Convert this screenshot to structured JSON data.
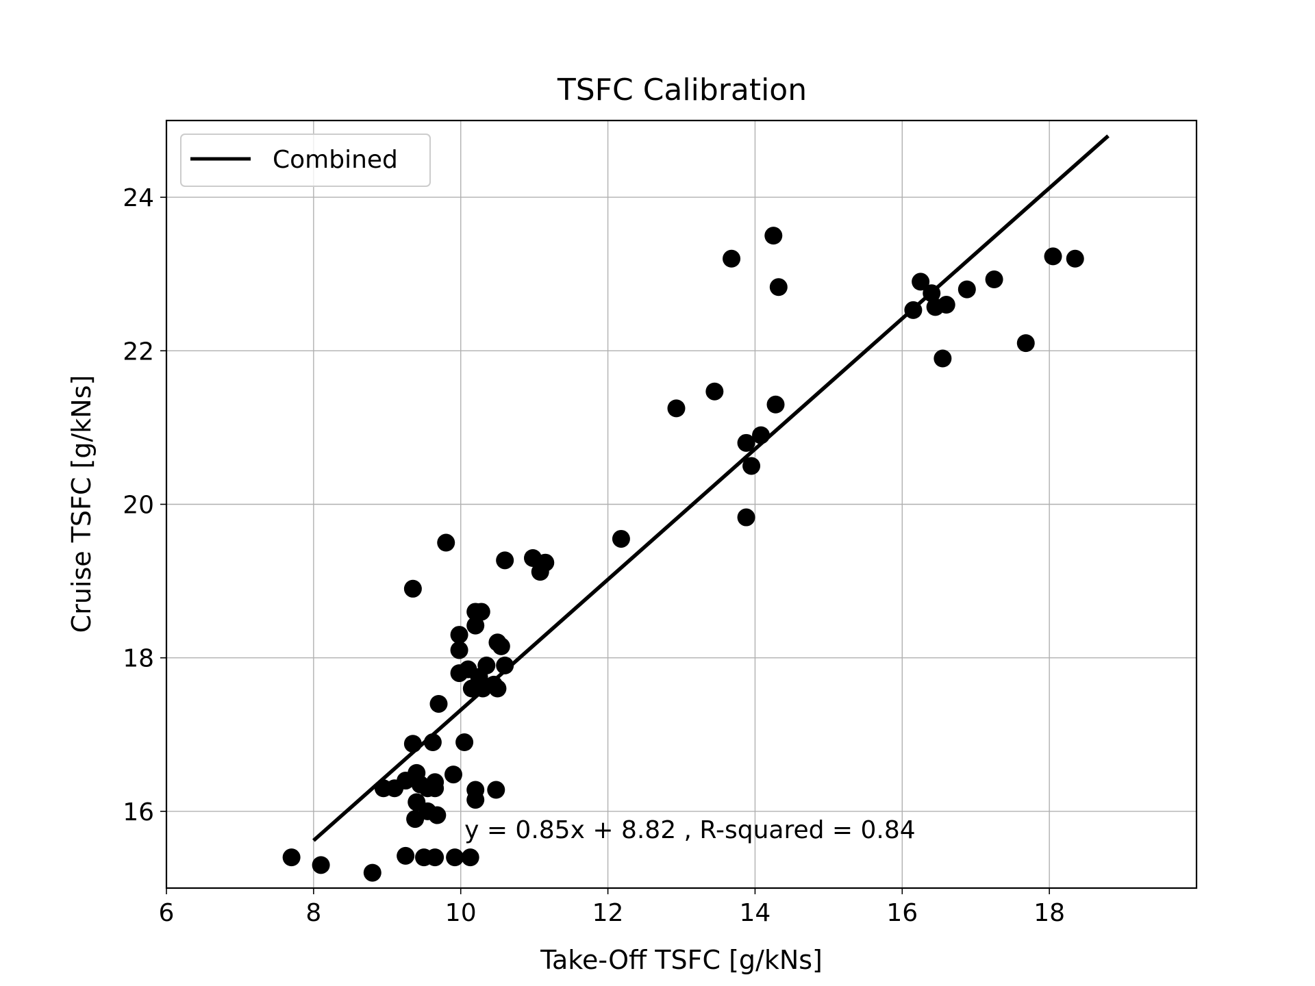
{
  "chart_data": {
    "type": "scatter",
    "title": "TSFC Calibration",
    "xlabel": "Take-Off TSFC [g/kNs]",
    "ylabel": "Cruise TSFC [g/kNs]",
    "xlim": [
      6,
      20
    ],
    "ylim": [
      15,
      25
    ],
    "xticks": [
      6,
      8,
      10,
      12,
      14,
      16,
      18
    ],
    "yticks": [
      16,
      18,
      20,
      22,
      24
    ],
    "grid": true,
    "legend_position": "upper-left",
    "legend": [
      {
        "label": "Combined",
        "type": "line",
        "color": "#000000"
      }
    ],
    "points_color": "#000000",
    "line_color": "#000000",
    "points": [
      [
        7.7,
        15.4
      ],
      [
        8.1,
        15.3
      ],
      [
        8.8,
        15.2
      ],
      [
        9.25,
        15.42
      ],
      [
        9.5,
        15.4
      ],
      [
        9.65,
        15.4
      ],
      [
        9.92,
        15.4
      ],
      [
        10.13,
        15.4
      ],
      [
        8.95,
        16.3
      ],
      [
        9.1,
        16.3
      ],
      [
        9.25,
        16.4
      ],
      [
        9.4,
        16.5
      ],
      [
        9.45,
        16.35
      ],
      [
        9.55,
        16.3
      ],
      [
        9.65,
        16.3
      ],
      [
        9.65,
        16.38
      ],
      [
        9.4,
        16.12
      ],
      [
        9.55,
        16.0
      ],
      [
        9.38,
        15.9
      ],
      [
        9.68,
        15.95
      ],
      [
        9.35,
        16.88
      ],
      [
        9.62,
        16.9
      ],
      [
        9.9,
        16.48
      ],
      [
        10.05,
        16.9
      ],
      [
        10.2,
        16.28
      ],
      [
        10.2,
        16.15
      ],
      [
        10.48,
        16.28
      ],
      [
        9.7,
        17.4
      ],
      [
        9.98,
        17.8
      ],
      [
        10.1,
        17.85
      ],
      [
        10.15,
        17.6
      ],
      [
        10.25,
        17.75
      ],
      [
        10.3,
        17.6
      ],
      [
        10.35,
        17.9
      ],
      [
        10.45,
        17.65
      ],
      [
        10.5,
        17.6
      ],
      [
        10.6,
        17.9
      ],
      [
        10.55,
        18.15
      ],
      [
        10.5,
        18.2
      ],
      [
        9.98,
        18.1
      ],
      [
        9.98,
        18.3
      ],
      [
        10.2,
        18.6
      ],
      [
        10.28,
        18.6
      ],
      [
        10.2,
        18.42
      ],
      [
        9.35,
        18.9
      ],
      [
        9.8,
        19.5
      ],
      [
        10.6,
        19.27
      ],
      [
        10.98,
        19.3
      ],
      [
        11.08,
        19.12
      ],
      [
        11.15,
        19.24
      ],
      [
        12.18,
        19.55
      ],
      [
        12.93,
        21.25
      ],
      [
        13.45,
        21.47
      ],
      [
        13.68,
        23.2
      ],
      [
        13.88,
        19.83
      ],
      [
        13.88,
        20.8
      ],
      [
        13.95,
        20.5
      ],
      [
        14.08,
        20.9
      ],
      [
        14.25,
        23.5
      ],
      [
        14.28,
        21.3
      ],
      [
        14.32,
        22.83
      ],
      [
        16.15,
        22.53
      ],
      [
        16.25,
        22.9
      ],
      [
        16.4,
        22.75
      ],
      [
        16.45,
        22.57
      ],
      [
        16.6,
        22.6
      ],
      [
        16.55,
        21.9
      ],
      [
        16.88,
        22.8
      ],
      [
        17.25,
        22.93
      ],
      [
        17.68,
        22.1
      ],
      [
        18.05,
        23.23
      ],
      [
        18.35,
        23.2
      ]
    ],
    "fit_line": {
      "slope": 0.85,
      "intercept": 8.82,
      "x_range": [
        8,
        18.8
      ]
    },
    "annotation": "y = 0.85x + 8.82 , R-squared = 0.84",
    "annotation_anchor": [
      10.05,
      15.65
    ]
  }
}
